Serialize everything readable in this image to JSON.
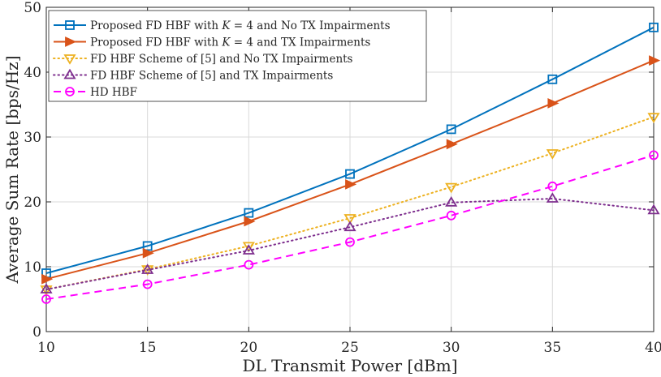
{
  "chart_data": {
    "type": "line",
    "title": "",
    "xlabel": "DL Transmit Power [dBm]",
    "ylabel": "Average Sum Rate [bps/Hz]",
    "xlim": [
      10,
      40
    ],
    "ylim": [
      0,
      50
    ],
    "xticks": [
      10,
      15,
      20,
      25,
      30,
      35,
      40
    ],
    "yticks": [
      0,
      10,
      20,
      30,
      40,
      50
    ],
    "grid": true,
    "legend_position": "top-left",
    "x": [
      10,
      15,
      20,
      25,
      30,
      35,
      40
    ],
    "series": [
      {
        "name": "Proposed FD HBF with K = 4 and No TX Impairments",
        "label_parts": [
          "Proposed FD HBF with ",
          "K",
          " = 4 and No TX Impairments"
        ],
        "values": [
          9.0,
          13.2,
          18.3,
          24.3,
          31.2,
          38.9,
          46.9
        ],
        "color": "#0072bd",
        "marker": "square",
        "dash": "solid"
      },
      {
        "name": "Proposed FD HBF with K = 4 and TX Impairments",
        "label_parts": [
          "Proposed FD HBF with ",
          "K",
          " = 4 and TX Impairments"
        ],
        "values": [
          8.1,
          12.1,
          17.0,
          22.7,
          28.9,
          35.2,
          41.8
        ],
        "color": "#d95319",
        "marker": "triangle-right",
        "dash": "solid"
      },
      {
        "name": "FD HBF Scheme of [5] and No TX Impairments",
        "label_parts": [
          "FD HBF Scheme of [5] and No TX Impairments"
        ],
        "values": [
          6.5,
          9.6,
          13.2,
          17.5,
          22.3,
          27.5,
          33.1
        ],
        "color": "#edb120",
        "marker": "triangle-down",
        "dash": "dotted"
      },
      {
        "name": "FD HBF Scheme of [5] and TX Impairments",
        "label_parts": [
          "FD HBF Scheme of [5] and TX Impairments"
        ],
        "values": [
          6.5,
          9.5,
          12.5,
          16.1,
          19.9,
          20.5,
          18.7
        ],
        "color": "#7e2f8e",
        "marker": "triangle-up",
        "dash": "dotted"
      },
      {
        "name": "HD HBF",
        "label_parts": [
          "HD HBF"
        ],
        "values": [
          5.0,
          7.3,
          10.3,
          13.8,
          17.9,
          22.4,
          27.2
        ],
        "color": "#ff00ff",
        "marker": "circle",
        "dash": "dashed"
      }
    ]
  }
}
